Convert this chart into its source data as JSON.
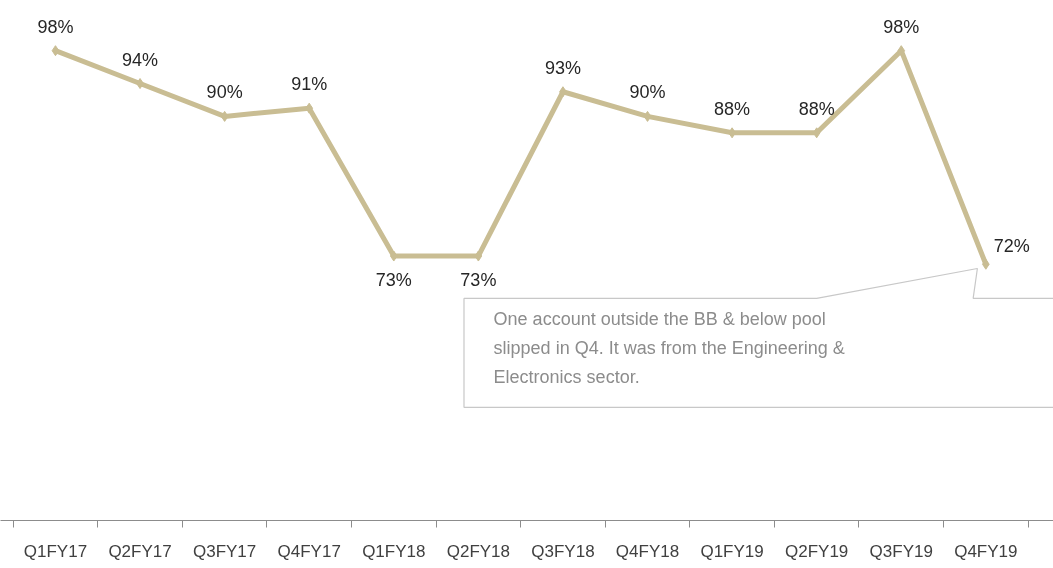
{
  "chart_data": {
    "type": "line",
    "categories": [
      "Q1FY17",
      "Q2FY17",
      "Q3FY17",
      "Q4FY17",
      "Q1FY18",
      "Q2FY18",
      "Q3FY18",
      "Q4FY18",
      "Q1FY19",
      "Q2FY19",
      "Q3FY19",
      "Q4FY19"
    ],
    "series": [
      {
        "color": "#c9bd93",
        "values": [
          98,
          94,
          90,
          91,
          73,
          73,
          93,
          90,
          88,
          88,
          98,
          72
        ],
        "value_labels": [
          "98%",
          "94%",
          "90%",
          "91%",
          "73%",
          "73%",
          "93%",
          "90%",
          "88%",
          "88%",
          "98%",
          "72%"
        ]
      }
    ],
    "marker": "diamond",
    "line_style": "solid",
    "grid": false,
    "tick_labels": "x",
    "annotations": [
      "One account outside the BB & below pool slipped in Q4.  It was from the Engineering & Electronics sector."
    ]
  }
}
